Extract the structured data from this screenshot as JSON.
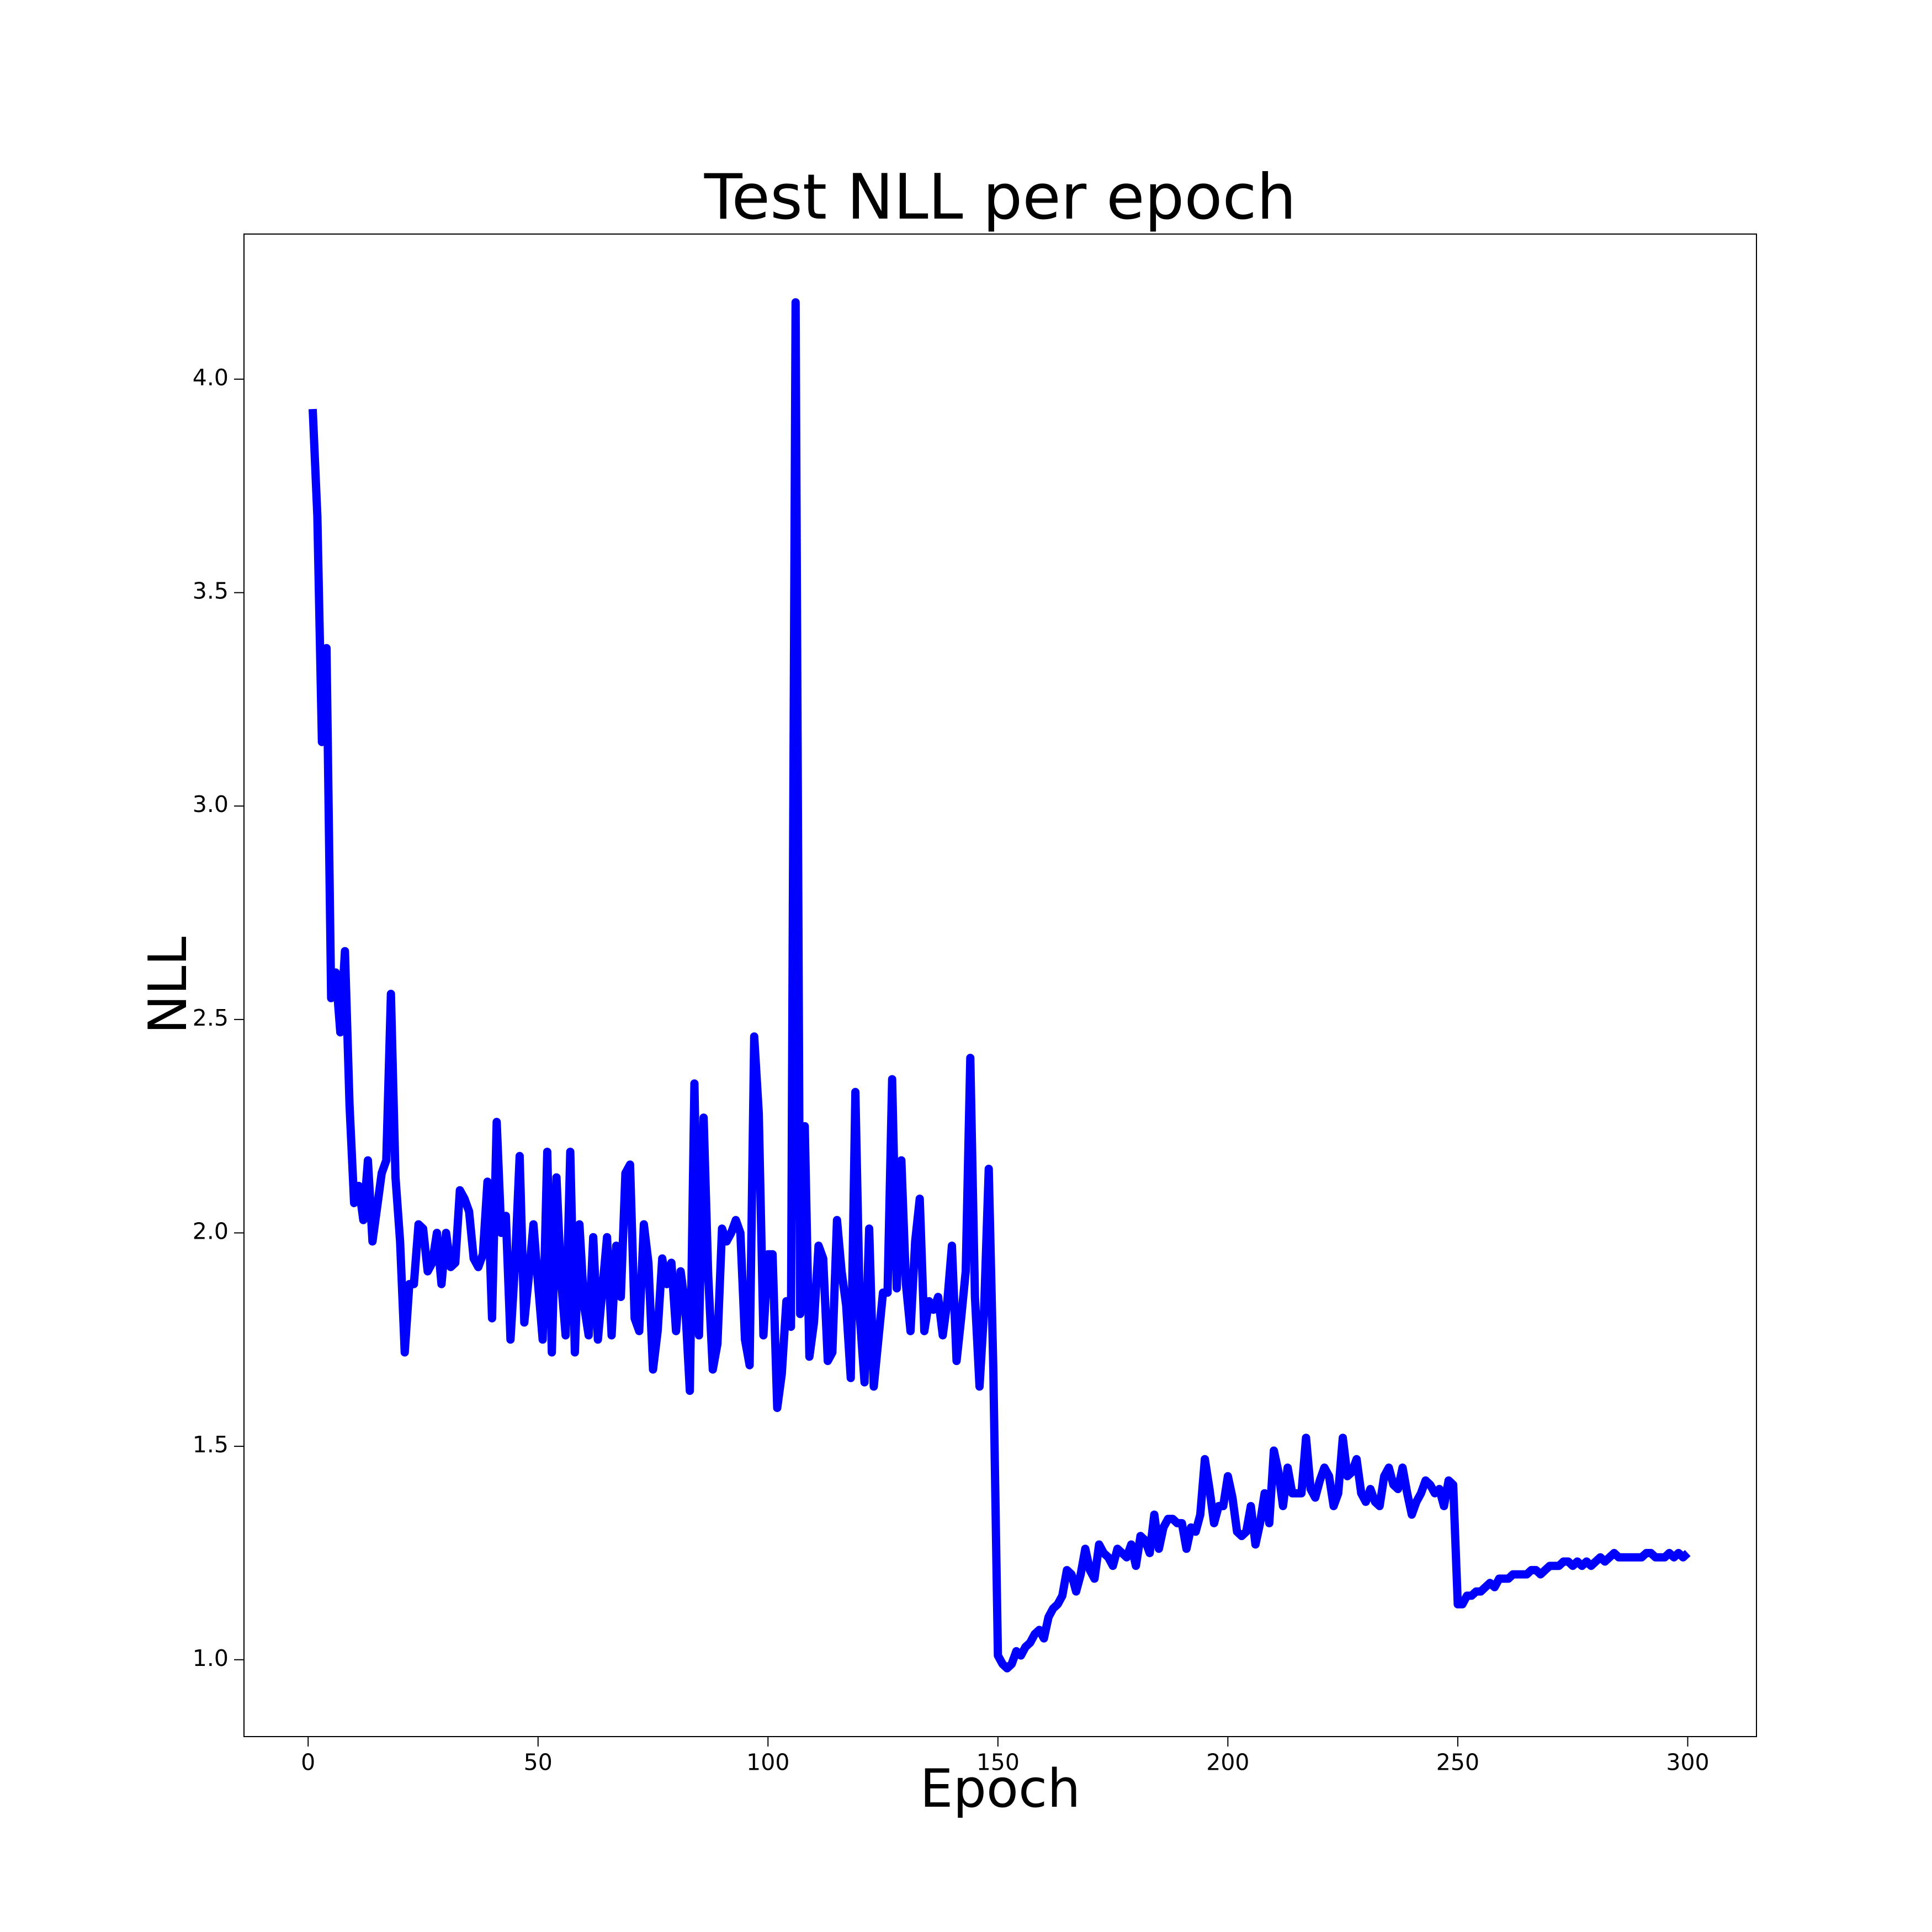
{
  "chart_data": {
    "type": "line",
    "title": "Test NLL per epoch",
    "x_label": "Epoch",
    "y_label": "NLL",
    "x": [
      1,
      2,
      3,
      4,
      5,
      6,
      7,
      8,
      9,
      10,
      11,
      12,
      13,
      14,
      15,
      16,
      17,
      18,
      19,
      20,
      21,
      22,
      23,
      24,
      25,
      26,
      27,
      28,
      29,
      30,
      31,
      32,
      33,
      34,
      35,
      36,
      37,
      38,
      39,
      40,
      41,
      42,
      43,
      44,
      45,
      46,
      47,
      48,
      49,
      50,
      51,
      52,
      53,
      54,
      55,
      56,
      57,
      58,
      59,
      60,
      61,
      62,
      63,
      64,
      65,
      66,
      67,
      68,
      69,
      70,
      71,
      72,
      73,
      74,
      75,
      76,
      77,
      78,
      79,
      80,
      81,
      82,
      83,
      84,
      85,
      86,
      87,
      88,
      89,
      90,
      91,
      92,
      93,
      94,
      95,
      96,
      97,
      98,
      99,
      100,
      101,
      102,
      103,
      104,
      105,
      106,
      107,
      108,
      109,
      110,
      111,
      112,
      113,
      114,
      115,
      116,
      117,
      118,
      119,
      120,
      121,
      122,
      123,
      124,
      125,
      126,
      127,
      128,
      129,
      130,
      131,
      132,
      133,
      134,
      135,
      136,
      137,
      138,
      139,
      140,
      141,
      142,
      143,
      144,
      145,
      146,
      147,
      148,
      149,
      150,
      151,
      152,
      153,
      154,
      155,
      156,
      157,
      158,
      159,
      160,
      161,
      162,
      163,
      164,
      165,
      166,
      167,
      168,
      169,
      170,
      171,
      172,
      173,
      174,
      175,
      176,
      177,
      178,
      179,
      180,
      181,
      182,
      183,
      184,
      185,
      186,
      187,
      188,
      189,
      190,
      191,
      192,
      193,
      194,
      195,
      196,
      197,
      198,
      199,
      200,
      201,
      202,
      203,
      204,
      205,
      206,
      207,
      208,
      209,
      210,
      211,
      212,
      213,
      214,
      215,
      216,
      217,
      218,
      219,
      220,
      221,
      222,
      223,
      224,
      225,
      226,
      227,
      228,
      229,
      230,
      231,
      232,
      233,
      234,
      235,
      236,
      237,
      238,
      239,
      240,
      241,
      242,
      243,
      244,
      245,
      246,
      247,
      248,
      249,
      250,
      251,
      252,
      253,
      254,
      255,
      256,
      257,
      258,
      259,
      260,
      261,
      262,
      263,
      264,
      265,
      266,
      267,
      268,
      269,
      270,
      271,
      272,
      273,
      274,
      275,
      276,
      277,
      278,
      279,
      280,
      281,
      282,
      283,
      284,
      285,
      286,
      287,
      288,
      289,
      290,
      291,
      292,
      293,
      294,
      295,
      296,
      297,
      298,
      299,
      300
    ],
    "series": [
      {
        "name": "Test NLL",
        "color": "#0000ff",
        "values": [
          3.93,
          3.68,
          3.15,
          3.37,
          2.55,
          2.61,
          2.47,
          2.66,
          2.3,
          2.07,
          2.11,
          2.03,
          2.17,
          1.98,
          2.06,
          2.14,
          2.17,
          2.56,
          2.13,
          1.98,
          1.72,
          1.88,
          1.88,
          2.02,
          2.01,
          1.91,
          1.93,
          2.0,
          1.88,
          2.0,
          1.92,
          1.93,
          2.1,
          2.08,
          2.05,
          1.94,
          1.92,
          1.95,
          2.12,
          1.8,
          2.26,
          2.0,
          2.04,
          1.75,
          1.93,
          2.18,
          1.79,
          1.9,
          2.02,
          1.88,
          1.75,
          2.19,
          1.72,
          2.13,
          1.89,
          1.76,
          2.19,
          1.72,
          2.02,
          1.83,
          1.76,
          1.99,
          1.75,
          1.87,
          1.99,
          1.76,
          1.97,
          1.85,
          2.14,
          2.16,
          1.8,
          1.77,
          2.02,
          1.93,
          1.68,
          1.77,
          1.94,
          1.88,
          1.93,
          1.77,
          1.91,
          1.83,
          1.63,
          2.35,
          1.76,
          2.27,
          1.9,
          1.68,
          1.74,
          2.01,
          1.98,
          2.0,
          2.03,
          2.0,
          1.75,
          1.69,
          2.46,
          2.28,
          1.76,
          1.95,
          1.95,
          1.59,
          1.67,
          1.84,
          1.78,
          4.18,
          1.81,
          2.25,
          1.71,
          1.79,
          1.97,
          1.94,
          1.7,
          1.72,
          2.03,
          1.91,
          1.83,
          1.66,
          2.33,
          1.8,
          1.65,
          2.01,
          1.64,
          1.75,
          1.86,
          1.86,
          2.36,
          1.87,
          2.17,
          1.88,
          1.77,
          1.98,
          2.08,
          1.77,
          1.84,
          1.82,
          1.85,
          1.76,
          1.84,
          1.97,
          1.7,
          1.8,
          1.91,
          2.41,
          1.85,
          1.64,
          1.82,
          2.15,
          1.68,
          1.01,
          0.99,
          0.98,
          0.99,
          1.02,
          1.01,
          1.03,
          1.04,
          1.06,
          1.07,
          1.05,
          1.1,
          1.12,
          1.13,
          1.15,
          1.21,
          1.2,
          1.16,
          1.2,
          1.26,
          1.21,
          1.19,
          1.27,
          1.25,
          1.24,
          1.22,
          1.26,
          1.25,
          1.24,
          1.27,
          1.22,
          1.29,
          1.28,
          1.25,
          1.34,
          1.26,
          1.31,
          1.33,
          1.33,
          1.32,
          1.32,
          1.26,
          1.31,
          1.3,
          1.34,
          1.47,
          1.4,
          1.32,
          1.36,
          1.36,
          1.43,
          1.38,
          1.3,
          1.29,
          1.3,
          1.36,
          1.27,
          1.32,
          1.39,
          1.32,
          1.49,
          1.44,
          1.36,
          1.45,
          1.39,
          1.39,
          1.39,
          1.52,
          1.4,
          1.38,
          1.42,
          1.45,
          1.43,
          1.36,
          1.39,
          1.52,
          1.43,
          1.44,
          1.47,
          1.39,
          1.37,
          1.4,
          1.37,
          1.36,
          1.43,
          1.45,
          1.41,
          1.4,
          1.45,
          1.39,
          1.34,
          1.37,
          1.39,
          1.42,
          1.41,
          1.39,
          1.4,
          1.36,
          1.42,
          1.41,
          1.13,
          1.13,
          1.15,
          1.15,
          1.16,
          1.16,
          1.17,
          1.18,
          1.17,
          1.19,
          1.19,
          1.19,
          1.2,
          1.2,
          1.2,
          1.2,
          1.21,
          1.21,
          1.2,
          1.21,
          1.22,
          1.22,
          1.22,
          1.23,
          1.23,
          1.22,
          1.23,
          1.22,
          1.23,
          1.22,
          1.23,
          1.24,
          1.23,
          1.24,
          1.25,
          1.24,
          1.24,
          1.24,
          1.24,
          1.24,
          1.24,
          1.25,
          1.25,
          1.24,
          1.24,
          1.24,
          1.25,
          1.24,
          1.25,
          1.24,
          1.25
        ]
      }
    ],
    "xlim": [
      -13.95,
      314.95
    ],
    "xticks": [
      0,
      50,
      100,
      150,
      200,
      250,
      300
    ],
    "ylim": [
      0.82,
      4.34
    ],
    "yticks": [
      {
        "value": 1,
        "label": "1.0"
      },
      1.5,
      {
        "value": 2,
        "label": "2.0"
      },
      2.5,
      {
        "value": 3,
        "label": "3.0"
      },
      3.5,
      {
        "value": 4,
        "label": "4.0"
      }
    ],
    "grid": false
  }
}
